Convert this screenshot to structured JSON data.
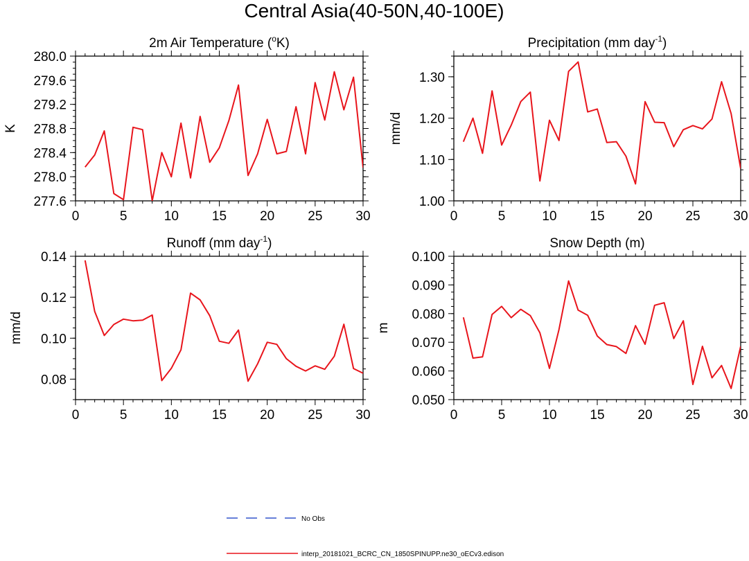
{
  "figure_title": "Central Asia(40-50N,40-100E)",
  "legend": [
    {
      "label": "No Obs",
      "color": "#3355cc",
      "style": "dashed"
    },
    {
      "label": "interp_20181021_BCRC_CN_1850SPINUPP.ne30_oECv3.edison",
      "color": "#e8141b",
      "style": "solid"
    }
  ],
  "chart_data": [
    {
      "type": "line",
      "title": "2m Air Temperature (",
      "title_sup": "o",
      "title_tail": "K)",
      "xlabel": "",
      "ylabel": "K",
      "xlim": [
        0,
        30
      ],
      "ylim": [
        277.6,
        280.0
      ],
      "xticks": [
        0,
        5,
        10,
        15,
        20,
        25,
        30
      ],
      "yticks": [
        277.6,
        278.0,
        278.4,
        278.8,
        279.2,
        279.6,
        280.0
      ],
      "ytick_labels": [
        "277.6",
        "278.0",
        "278.4",
        "278.8",
        "279.2",
        "279.6",
        "280.0"
      ],
      "series": [
        {
          "name": "interp_20181021_BCRC_CN_1850SPINUPP.ne30_oECv3.edison",
          "color": "#e8141b",
          "x": [
            1,
            2,
            3,
            4,
            5,
            6,
            7,
            8,
            9,
            10,
            11,
            12,
            13,
            14,
            15,
            16,
            17,
            18,
            19,
            20,
            21,
            22,
            23,
            24,
            25,
            26,
            27,
            28,
            29,
            30
          ],
          "values": [
            278.16,
            278.36,
            278.76,
            277.72,
            277.62,
            278.82,
            278.78,
            277.6,
            278.4,
            278.0,
            278.89,
            277.98,
            279.0,
            278.24,
            278.48,
            278.93,
            279.52,
            278.02,
            278.38,
            278.95,
            278.38,
            278.42,
            279.16,
            278.38,
            279.56,
            278.94,
            279.74,
            279.11,
            279.65,
            278.15
          ]
        }
      ]
    },
    {
      "type": "line",
      "title": "Precipitation (mm day",
      "title_sup": "-1",
      "title_tail": ")",
      "xlabel": "",
      "ylabel": "mm/d",
      "xlim": [
        0,
        30
      ],
      "ylim": [
        1.0,
        1.35
      ],
      "xticks": [
        0,
        5,
        10,
        15,
        20,
        25,
        30
      ],
      "yticks": [
        1.0,
        1.1,
        1.2,
        1.3
      ],
      "ytick_labels": [
        "1.00",
        "1.10",
        "1.20",
        "1.30"
      ],
      "series": [
        {
          "name": "interp_20181021_BCRC_CN_1850SPINUPP.ne30_oECv3.edison",
          "color": "#e8141b",
          "x": [
            1,
            2,
            3,
            4,
            5,
            6,
            7,
            8,
            9,
            10,
            11,
            12,
            13,
            14,
            15,
            16,
            17,
            18,
            19,
            20,
            21,
            22,
            23,
            24,
            25,
            26,
            27,
            28,
            29,
            30
          ],
          "values": [
            1.143,
            1.2,
            1.115,
            1.266,
            1.135,
            1.183,
            1.24,
            1.263,
            1.048,
            1.195,
            1.146,
            1.313,
            1.336,
            1.215,
            1.222,
            1.141,
            1.143,
            1.108,
            1.041,
            1.24,
            1.19,
            1.189,
            1.131,
            1.172,
            1.182,
            1.174,
            1.198,
            1.288,
            1.211,
            1.078
          ]
        }
      ]
    },
    {
      "type": "line",
      "title": "Runoff (mm day",
      "title_sup": "-1",
      "title_tail": ")",
      "xlabel": "",
      "ylabel": "mm/d",
      "xlim": [
        0,
        30
      ],
      "ylim": [
        0.07,
        0.14
      ],
      "xticks": [
        0,
        5,
        10,
        15,
        20,
        25,
        30
      ],
      "yticks": [
        0.08,
        0.1,
        0.12,
        0.14
      ],
      "ytick_labels": [
        "0.08",
        "0.10",
        "0.12",
        "0.14"
      ],
      "series": [
        {
          "name": "interp_20181021_BCRC_CN_1850SPINUPP.ne30_oECv3.edison",
          "color": "#e8141b",
          "x": [
            1,
            2,
            3,
            4,
            5,
            6,
            7,
            8,
            9,
            10,
            11,
            12,
            13,
            14,
            15,
            16,
            17,
            18,
            19,
            20,
            21,
            22,
            23,
            24,
            25,
            26,
            27,
            28,
            29,
            30
          ],
          "values": [
            0.138,
            0.113,
            0.1013,
            0.1067,
            0.1093,
            0.1085,
            0.1088,
            0.1113,
            0.0793,
            0.0853,
            0.0943,
            0.122,
            0.1187,
            0.111,
            0.0985,
            0.0975,
            0.104,
            0.079,
            0.0875,
            0.098,
            0.097,
            0.09,
            0.0863,
            0.084,
            0.0865,
            0.0848,
            0.0912,
            0.1068,
            0.0852,
            0.0829
          ]
        }
      ]
    },
    {
      "type": "line",
      "title": "Snow Depth (m)",
      "title_sup": "",
      "title_tail": "",
      "xlabel": "",
      "ylabel": "m",
      "xlim": [
        0,
        30
      ],
      "ylim": [
        0.05,
        0.1
      ],
      "xticks": [
        0,
        5,
        10,
        15,
        20,
        25,
        30
      ],
      "yticks": [
        0.05,
        0.06,
        0.07,
        0.08,
        0.09,
        0.1
      ],
      "ytick_labels": [
        "0.050",
        "0.060",
        "0.070",
        "0.080",
        "0.090",
        "0.100"
      ],
      "series": [
        {
          "name": "interp_20181021_BCRC_CN_1850SPINUPP.ne30_oECv3.edison",
          "color": "#e8141b",
          "x": [
            1,
            2,
            3,
            4,
            5,
            6,
            7,
            8,
            9,
            10,
            11,
            12,
            13,
            14,
            15,
            16,
            17,
            18,
            19,
            20,
            21,
            22,
            23,
            24,
            25,
            26,
            27,
            28,
            29,
            30
          ],
          "values": [
            0.0787,
            0.0645,
            0.0649,
            0.0797,
            0.0825,
            0.0786,
            0.0815,
            0.0793,
            0.0733,
            0.0609,
            0.0745,
            0.0914,
            0.0812,
            0.0794,
            0.0722,
            0.0692,
            0.0685,
            0.0661,
            0.0758,
            0.0693,
            0.0829,
            0.0838,
            0.0713,
            0.0775,
            0.0553,
            0.0686,
            0.0576,
            0.0619,
            0.0539,
            0.0686
          ]
        }
      ]
    }
  ]
}
